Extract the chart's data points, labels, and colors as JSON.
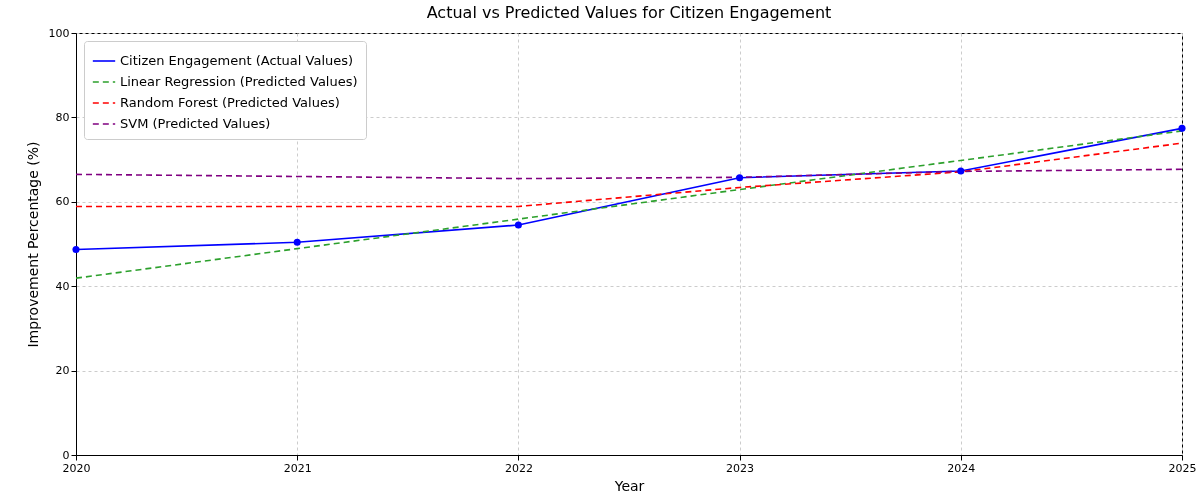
{
  "chart_data": {
    "type": "line",
    "title": "Actual vs Predicted Values for Citizen Engagement",
    "xlabel": "Year",
    "ylabel": "Improvement Percentage (%)",
    "x": [
      2020,
      2021,
      2022,
      2023,
      2024,
      2025
    ],
    "series": [
      {
        "name": "Citizen Engagement (Actual Values)",
        "color": "#0000ff",
        "marker": "circle",
        "line_style": "solid",
        "values": [
          48.7,
          50.4,
          54.5,
          65.7,
          67.3,
          77.4
        ]
      },
      {
        "name": "Linear Regression (Predicted Values)",
        "color": "#2ca02c",
        "marker": "none",
        "line_style": "dashed",
        "values": [
          41.9,
          48.9,
          55.9,
          62.9,
          69.8,
          76.8
        ]
      },
      {
        "name": "Random Forest (Predicted Values)",
        "color": "#ff0000",
        "marker": "none",
        "line_style": "dashed",
        "values": [
          58.9,
          58.9,
          58.9,
          63.4,
          67.1,
          73.9
        ]
      },
      {
        "name": "SVM (Predicted Values)",
        "color": "#800080",
        "marker": "none",
        "line_style": "dashed",
        "values": [
          66.5,
          66.0,
          65.5,
          65.8,
          67.2,
          67.7
        ]
      }
    ],
    "xlim": [
      2020,
      2025
    ],
    "xticks": [
      2020,
      2021,
      2022,
      2023,
      2024,
      2025
    ],
    "ylim": [
      0,
      100
    ],
    "yticks": [
      0,
      20,
      40,
      60,
      80,
      100
    ],
    "grid": true,
    "legend": "top left"
  }
}
